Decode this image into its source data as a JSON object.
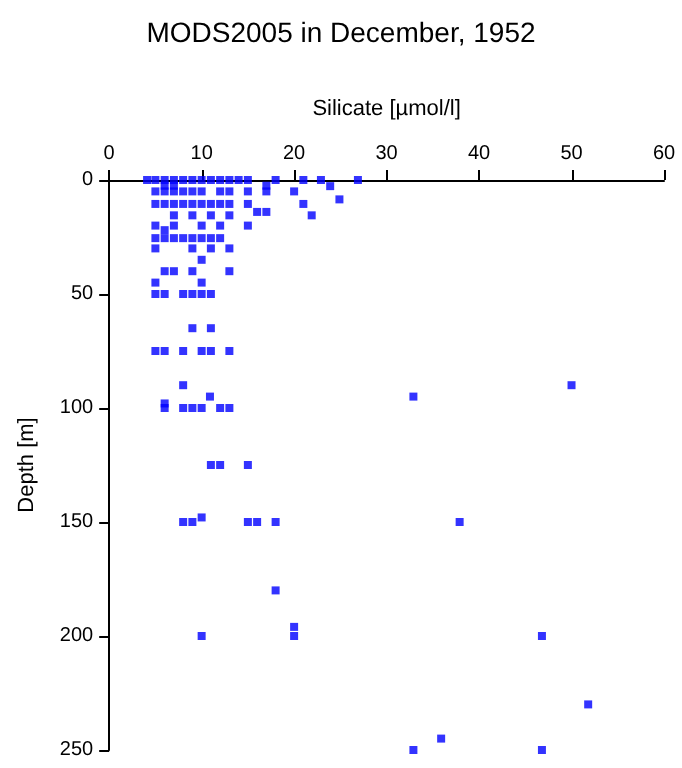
{
  "chart_data": {
    "type": "scatter",
    "title": "MODS2005 in December, 1952",
    "xlabel": "Silicate [µmol/l]",
    "ylabel": "Depth [m]",
    "x": [
      4.1,
      5,
      6,
      7,
      8,
      9,
      10,
      11,
      12,
      13,
      14,
      15,
      18,
      21,
      22.9,
      26.9,
      23.9,
      24.9,
      21.9,
      6,
      7,
      17,
      5,
      6,
      7,
      8,
      9,
      10,
      12,
      13,
      15,
      17,
      20,
      5,
      6,
      7,
      8,
      9,
      10,
      11,
      12,
      13,
      15,
      21,
      16,
      17,
      7,
      9,
      11,
      13,
      5,
      7,
      10,
      12,
      15,
      6,
      5,
      6,
      7,
      8,
      9,
      10,
      11,
      12,
      5,
      9,
      11,
      13,
      10,
      6,
      7,
      9,
      13,
      5,
      10,
      5,
      6,
      8,
      9,
      10,
      11,
      9,
      11,
      5,
      6,
      8,
      10,
      11,
      13,
      8,
      6,
      6,
      8,
      9,
      10,
      12,
      13,
      10.9,
      11,
      12,
      15,
      8,
      9,
      10,
      15,
      16,
      18,
      18,
      10,
      20,
      20,
      50,
      32.9,
      37.9,
      46.8,
      51.8,
      35.9,
      32.9,
      46.8
    ],
    "values": [
      0,
      0,
      0,
      0,
      0,
      0,
      0,
      0,
      0,
      0,
      0,
      0,
      0,
      0,
      0,
      0,
      2.7,
      8.5,
      15.5,
      2.5,
      2.5,
      2.5,
      5,
      5,
      5,
      5,
      5,
      5,
      5,
      5,
      5,
      5,
      5,
      10.5,
      10.5,
      10.5,
      10.5,
      10.5,
      10.5,
      10.5,
      10.5,
      10.5,
      10.5,
      10.5,
      14,
      14,
      15.5,
      15.5,
      15.5,
      15.5,
      20,
      20,
      20,
      20,
      20,
      22,
      25.5,
      25.5,
      25.5,
      25.5,
      25.5,
      25.5,
      25.5,
      25.5,
      30,
      30,
      30,
      30,
      35,
      40,
      40,
      40,
      40,
      45,
      45,
      50,
      50,
      50,
      50,
      50,
      50,
      65,
      65,
      75,
      75,
      75,
      75,
      75,
      75,
      90,
      98,
      100,
      100,
      100,
      100,
      100,
      100,
      95,
      125,
      125,
      125,
      150,
      150,
      148,
      150,
      150,
      150,
      180,
      200,
      196,
      200,
      90,
      95,
      150,
      200,
      230,
      245,
      250,
      250
    ],
    "color": "#0000ff",
    "marker": "square",
    "xlim": [
      0,
      60
    ],
    "xticks": [
      0,
      10,
      20,
      30,
      40,
      50,
      60
    ],
    "ylim": [
      250,
      0
    ],
    "yticks": [
      0,
      50,
      100,
      150,
      200,
      250
    ],
    "grid": false
  }
}
